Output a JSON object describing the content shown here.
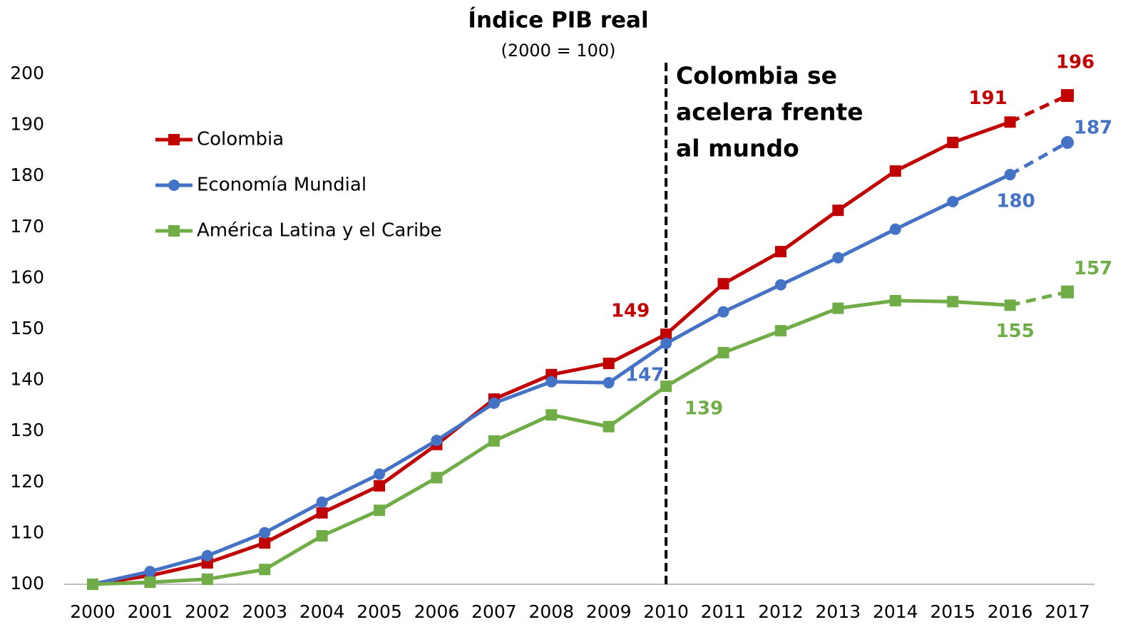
{
  "chart_data": {
    "type": "line",
    "title": "Índice PIB real",
    "subtitle": "(2000 = 100)",
    "annotation": [
      "Colombia se",
      "acelera frente",
      "al mundo"
    ],
    "marker_line_category": "2010",
    "categories": [
      "2000",
      "2001",
      "2002",
      "2003",
      "2004",
      "2005",
      "2006",
      "2007",
      "2008",
      "2009",
      "2010",
      "2011",
      "2012",
      "2013",
      "2014",
      "2015",
      "2016",
      "2017"
    ],
    "ylim": [
      100,
      200
    ],
    "yticks": [
      100,
      110,
      120,
      130,
      140,
      150,
      160,
      170,
      180,
      190,
      200
    ],
    "grid": false,
    "legend": "upper left",
    "dashed_last_segment": true,
    "series": [
      {
        "name": "Colombia",
        "color": "#c00000",
        "marker": "square",
        "values": [
          100,
          101.7,
          104.2,
          108.1,
          114,
          119.3,
          127.4,
          136.3,
          141.1,
          143.3,
          149,
          158.9,
          165.2,
          173.3,
          181,
          186.6,
          190.6,
          195.8
        ],
        "value_labels": [
          null,
          null,
          null,
          null,
          null,
          null,
          null,
          null,
          null,
          null,
          "149",
          null,
          null,
          null,
          null,
          null,
          "191",
          "196"
        ]
      },
      {
        "name": "Economía Mundial",
        "color": "#4472c4",
        "marker": "circle",
        "values": [
          100,
          102.5,
          105.6,
          110.1,
          116.1,
          121.6,
          128.2,
          135.5,
          139.7,
          139.5,
          147.2,
          153.4,
          158.7,
          164,
          169.6,
          175,
          180.3,
          186.6
        ],
        "value_labels": [
          null,
          null,
          null,
          null,
          null,
          null,
          null,
          null,
          null,
          null,
          "147",
          null,
          null,
          null,
          null,
          null,
          "180",
          "187"
        ]
      },
      {
        "name": "América Latina y el Caribe",
        "color": "#70ad47",
        "marker": "square",
        "values": [
          100,
          100.4,
          101,
          102.9,
          109.5,
          114.5,
          120.9,
          128.1,
          133.2,
          130.9,
          138.8,
          145.4,
          149.7,
          154.1,
          155.6,
          155.4,
          154.7,
          157.3
        ],
        "value_labels": [
          null,
          null,
          null,
          null,
          null,
          null,
          null,
          null,
          null,
          null,
          "139",
          null,
          null,
          null,
          null,
          null,
          "155",
          "157"
        ]
      }
    ]
  }
}
